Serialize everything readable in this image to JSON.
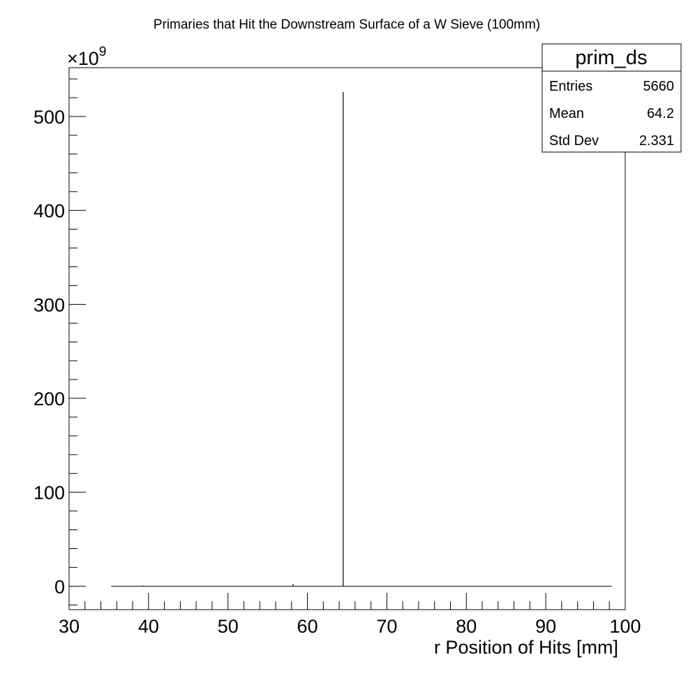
{
  "chart_data": {
    "type": "bar",
    "title": "Primaries that Hit the Downstream Surface of a W Sieve (100mm)",
    "xlabel": "r Position of Hits [mm]",
    "ylabel": "",
    "y_exponent_label": "×10",
    "y_exponent_power": "9",
    "xlim": [
      30,
      100
    ],
    "ylim": [
      -25,
      552
    ],
    "x_ticks": [
      30,
      40,
      50,
      60,
      70,
      80,
      90,
      100
    ],
    "y_ticks": [
      0,
      100,
      200,
      300,
      400,
      500
    ],
    "baseline_range": [
      35.3,
      98.3
    ],
    "bins": [
      {
        "x": 39.3,
        "value": 0.8
      },
      {
        "x": 58.2,
        "value": 2.5
      },
      {
        "x": 64.5,
        "value": 526
      }
    ],
    "grid": false,
    "legend": "none"
  },
  "stats_box": {
    "name": "prim_ds",
    "rows": [
      {
        "label": "Entries",
        "value": "5660"
      },
      {
        "label": "Mean",
        "value": "64.2"
      },
      {
        "label": "Std Dev",
        "value": "2.331"
      }
    ]
  }
}
